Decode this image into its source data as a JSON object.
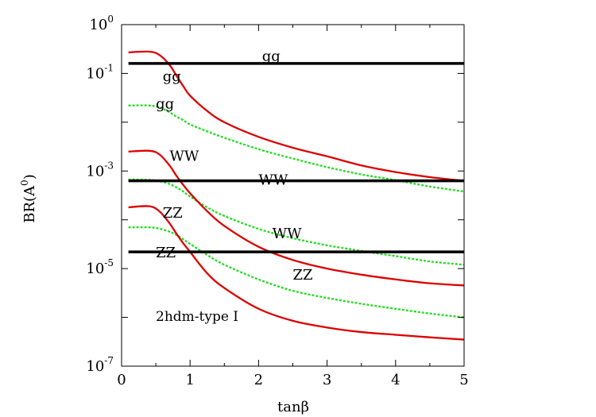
{
  "chart_data": {
    "type": "line",
    "xlabel": "tanβ",
    "ylabel": "BR(A^0)",
    "xlim": [
      0,
      5
    ],
    "ylim": [
      1e-07,
      1
    ],
    "yscale": "log",
    "xticks": [
      "0",
      "1",
      "2",
      "3",
      "4",
      "5"
    ],
    "yticks": [
      {
        "base": "10",
        "exp": "0"
      },
      {
        "base": "10",
        "exp": "-1"
      },
      {
        "base": "10",
        "exp": "-3"
      },
      {
        "base": "10",
        "exp": "-5"
      },
      {
        "base": "10",
        "exp": "-7"
      }
    ],
    "annotation": "2hdm-type I",
    "colors": {
      "red": "#dd0000",
      "green": "#22dd22",
      "black": "#000000"
    },
    "series": [
      {
        "label": "gg",
        "color": "black",
        "style": "solid",
        "x": [
          0.1,
          5.0
        ],
        "y": [
          0.16,
          0.16
        ]
      },
      {
        "label": "WW",
        "color": "black",
        "style": "solid",
        "x": [
          0.1,
          5.0
        ],
        "y": [
          0.00063,
          0.00063
        ]
      },
      {
        "label": "ZZ",
        "color": "black",
        "style": "solid",
        "x": [
          0.1,
          5.0
        ],
        "y": [
          2.2e-05,
          2.2e-05
        ]
      },
      {
        "label": "gg",
        "color": "red",
        "style": "solid",
        "x": [
          0.1,
          0.4,
          0.55,
          0.7,
          0.8,
          0.9,
          1.0,
          1.25,
          1.5,
          2.0,
          2.5,
          3.0,
          3.5,
          4.0,
          4.5,
          5.0
        ],
        "y": [
          0.27,
          0.28,
          0.24,
          0.15,
          0.09,
          0.055,
          0.035,
          0.017,
          0.01,
          0.005,
          0.003,
          0.002,
          0.0013,
          0.00095,
          0.00075,
          0.00063
        ]
      },
      {
        "label": "gg",
        "color": "green",
        "style": "dotted",
        "x": [
          0.1,
          0.4,
          0.55,
          0.7,
          0.8,
          0.9,
          1.0,
          1.25,
          1.5,
          2.0,
          2.5,
          3.0,
          3.5,
          4.0,
          4.5,
          5.0
        ],
        "y": [
          0.022,
          0.022,
          0.02,
          0.016,
          0.013,
          0.011,
          0.009,
          0.0065,
          0.0048,
          0.0028,
          0.0018,
          0.0012,
          0.00085,
          0.00065,
          0.00048,
          0.00038
        ]
      },
      {
        "label": "WW",
        "color": "red",
        "style": "solid",
        "x": [
          0.1,
          0.4,
          0.55,
          0.7,
          0.8,
          0.9,
          1.0,
          1.25,
          1.5,
          2.0,
          2.5,
          3.0,
          3.5,
          4.0,
          4.5,
          5.0
        ],
        "y": [
          0.0025,
          0.0026,
          0.0022,
          0.0013,
          0.0008,
          0.00052,
          0.00035,
          0.00015,
          7.5e-05,
          2.8e-05,
          1.5e-05,
          1e-05,
          7.5e-06,
          6e-06,
          5e-06,
          4.5e-06
        ]
      },
      {
        "label": "WW",
        "color": "green",
        "style": "dotted",
        "x": [
          0.1,
          0.4,
          0.55,
          0.7,
          0.8,
          0.9,
          1.0,
          1.25,
          1.5,
          2.0,
          2.5,
          3.0,
          3.5,
          4.0,
          4.5,
          5.0
        ],
        "y": [
          0.00067,
          0.00066,
          0.00062,
          0.00054,
          0.00046,
          0.00038,
          0.0003,
          0.00018,
          0.00012,
          6.5e-05,
          4.2e-05,
          3e-05,
          2.3e-05,
          1.8e-05,
          1.4e-05,
          1.2e-05
        ]
      },
      {
        "label": "ZZ",
        "color": "red",
        "style": "solid",
        "x": [
          0.1,
          0.4,
          0.55,
          0.7,
          0.8,
          0.9,
          1.0,
          1.25,
          1.5,
          2.0,
          2.5,
          3.0,
          3.5,
          4.0,
          4.5,
          5.0
        ],
        "y": [
          0.00018,
          0.00019,
          0.00015,
          8.5e-05,
          5.2e-05,
          3.3e-05,
          2.2e-05,
          8e-06,
          4e-06,
          1.5e-06,
          8.5e-07,
          6.2e-07,
          5e-07,
          4.4e-07,
          3.9e-07,
          3.5e-07
        ]
      },
      {
        "label": "ZZ",
        "color": "green",
        "style": "dotted",
        "x": [
          0.1,
          0.4,
          0.55,
          0.7,
          0.8,
          0.9,
          1.0,
          1.25,
          1.5,
          2.0,
          2.5,
          3.0,
          3.5,
          4.0,
          4.5,
          5.0
        ],
        "y": [
          7e-05,
          7e-05,
          6.6e-05,
          5.7e-05,
          4.9e-05,
          4e-05,
          3.2e-05,
          1.9e-05,
          1.2e-05,
          6e-06,
          3.5e-06,
          2.5e-06,
          1.9e-06,
          1.5e-06,
          1.2e-06,
          1e-06
        ]
      }
    ],
    "curve_labels": [
      {
        "text": "gg",
        "x": 2.05,
        "y": 0.18
      },
      {
        "text": "gg",
        "x": 0.6,
        "y": 0.07
      },
      {
        "text": "gg",
        "x": 0.5,
        "y": 0.019
      },
      {
        "text": "WW",
        "x": 0.7,
        "y": 0.0016
      },
      {
        "text": "WW",
        "x": 2.0,
        "y": 0.00052
      },
      {
        "text": "ZZ",
        "x": 0.6,
        "y": 0.00011
      },
      {
        "text": "WW",
        "x": 2.2,
        "y": 4.2e-05
      },
      {
        "text": "ZZ",
        "x": 0.5,
        "y": 1.7e-05
      },
      {
        "text": "ZZ",
        "x": 2.5,
        "y": 6e-06
      }
    ]
  }
}
